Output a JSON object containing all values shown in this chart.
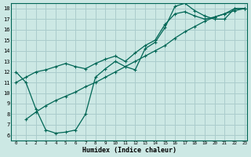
{
  "xlabel": "Humidex (Indice chaleur)",
  "bg_color": "#cce8e4",
  "grid_color": "#aacccc",
  "line_color": "#006655",
  "curve1_x": [
    0,
    1,
    2,
    3,
    4,
    5,
    6,
    7,
    8,
    9,
    10,
    11,
    12,
    13,
    14,
    15,
    16,
    17,
    18,
    19,
    20,
    21,
    22,
    23
  ],
  "curve1_y": [
    12.0,
    11.0,
    8.5,
    6.5,
    6.2,
    6.3,
    6.5,
    8.0,
    11.5,
    12.3,
    13.0,
    12.5,
    12.2,
    14.2,
    14.8,
    16.2,
    18.2,
    18.5,
    17.8,
    17.3,
    17.0,
    17.0,
    18.0,
    18.0
  ],
  "curve2_x": [
    0,
    1,
    2,
    3,
    4,
    5,
    6,
    7,
    8,
    9,
    10,
    11,
    12,
    13,
    14,
    15,
    16,
    17,
    18,
    19,
    20,
    21,
    22,
    23
  ],
  "curve2_y": [
    11.0,
    11.5,
    12.0,
    12.2,
    12.5,
    12.8,
    12.5,
    12.3,
    12.8,
    13.2,
    13.5,
    13.0,
    13.8,
    14.5,
    15.0,
    16.5,
    17.5,
    17.7,
    17.3,
    17.0,
    17.2,
    17.5,
    18.0,
    18.0
  ],
  "curve3_x": [
    1,
    2,
    3,
    4,
    5,
    6,
    7,
    8,
    9,
    10,
    11,
    12,
    13,
    14,
    15,
    16,
    17,
    18,
    19,
    20,
    21,
    22,
    23
  ],
  "curve3_y": [
    7.5,
    8.2,
    8.8,
    9.3,
    9.7,
    10.1,
    10.6,
    11.0,
    11.5,
    12.0,
    12.5,
    13.0,
    13.5,
    14.0,
    14.5,
    15.2,
    15.8,
    16.3,
    16.8,
    17.2,
    17.5,
    17.8,
    18.0
  ],
  "ylim_min": 5.5,
  "ylim_max": 18.5,
  "xlim_min": -0.5,
  "xlim_max": 23.3,
  "yticks": [
    6,
    7,
    8,
    9,
    10,
    11,
    12,
    13,
    14,
    15,
    16,
    17,
    18
  ],
  "xticks": [
    0,
    1,
    2,
    3,
    4,
    5,
    6,
    7,
    8,
    9,
    10,
    11,
    12,
    13,
    14,
    15,
    16,
    17,
    18,
    19,
    20,
    21,
    22,
    23
  ]
}
